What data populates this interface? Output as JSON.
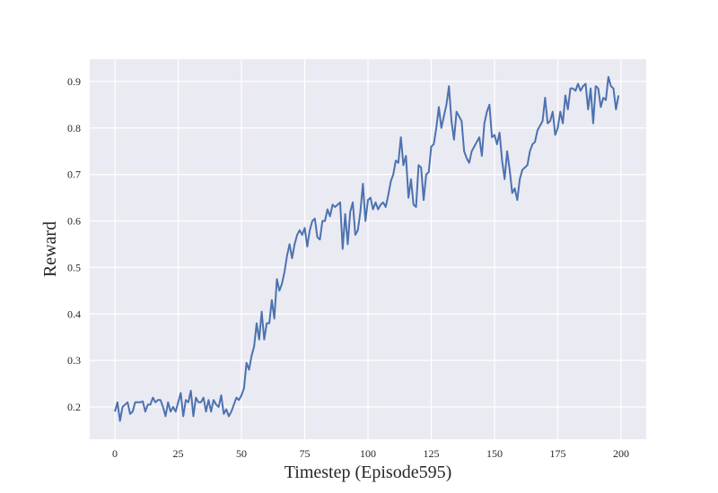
{
  "chart_data": {
    "type": "line",
    "xlabel": "Timestep (Episode595)",
    "ylabel": "Reward",
    "x": [
      0,
      1,
      2,
      3,
      4,
      5,
      6,
      7,
      8,
      9,
      10,
      11,
      12,
      13,
      14,
      15,
      16,
      17,
      18,
      19,
      20,
      21,
      22,
      23,
      24,
      25,
      26,
      27,
      28,
      29,
      30,
      31,
      32,
      33,
      34,
      35,
      36,
      37,
      38,
      39,
      40,
      41,
      42,
      43,
      44,
      45,
      46,
      47,
      48,
      49,
      50,
      51,
      52,
      53,
      54,
      55,
      56,
      57,
      58,
      59,
      60,
      61,
      62,
      63,
      64,
      65,
      66,
      67,
      68,
      69,
      70,
      71,
      72,
      73,
      74,
      75,
      76,
      77,
      78,
      79,
      80,
      81,
      82,
      83,
      84,
      85,
      86,
      87,
      88,
      89,
      90,
      91,
      92,
      93,
      94,
      95,
      96,
      97,
      98,
      99,
      100,
      101,
      102,
      103,
      104,
      105,
      106,
      107,
      108,
      109,
      110,
      111,
      112,
      113,
      114,
      115,
      116,
      117,
      118,
      119,
      120,
      121,
      122,
      123,
      124,
      125,
      126,
      127,
      128,
      129,
      130,
      131,
      132,
      133,
      134,
      135,
      136,
      137,
      138,
      139,
      140,
      141,
      142,
      143,
      144,
      145,
      146,
      147,
      148,
      149,
      150,
      151,
      152,
      153,
      154,
      155,
      156,
      157,
      158,
      159,
      160,
      161,
      162,
      163,
      164,
      165,
      166,
      167,
      168,
      169,
      170,
      171,
      172,
      173,
      174,
      175,
      176,
      177,
      178,
      179,
      180,
      181,
      182,
      183,
      184,
      185,
      186,
      187,
      188,
      189,
      190,
      191,
      192,
      193,
      194,
      195,
      196,
      197,
      198,
      199
    ],
    "series": [
      {
        "name": "Reward",
        "color": "#4c72b0",
        "values": [
          0.19,
          0.21,
          0.17,
          0.2,
          0.205,
          0.21,
          0.185,
          0.19,
          0.21,
          0.21,
          0.21,
          0.212,
          0.19,
          0.205,
          0.205,
          0.22,
          0.21,
          0.215,
          0.215,
          0.2,
          0.18,
          0.21,
          0.19,
          0.2,
          0.19,
          0.21,
          0.23,
          0.18,
          0.215,
          0.21,
          0.235,
          0.18,
          0.22,
          0.21,
          0.21,
          0.22,
          0.19,
          0.215,
          0.19,
          0.215,
          0.205,
          0.2,
          0.225,
          0.185,
          0.195,
          0.18,
          0.19,
          0.205,
          0.22,
          0.215,
          0.225,
          0.24,
          0.295,
          0.28,
          0.31,
          0.33,
          0.38,
          0.345,
          0.405,
          0.345,
          0.38,
          0.38,
          0.43,
          0.39,
          0.475,
          0.45,
          0.465,
          0.49,
          0.525,
          0.55,
          0.52,
          0.55,
          0.57,
          0.58,
          0.57,
          0.585,
          0.545,
          0.58,
          0.6,
          0.605,
          0.565,
          0.56,
          0.6,
          0.6,
          0.625,
          0.61,
          0.635,
          0.63,
          0.635,
          0.64,
          0.54,
          0.615,
          0.55,
          0.62,
          0.64,
          0.57,
          0.58,
          0.62,
          0.68,
          0.6,
          0.645,
          0.65,
          0.625,
          0.64,
          0.625,
          0.635,
          0.64,
          0.63,
          0.655,
          0.685,
          0.7,
          0.73,
          0.725,
          0.78,
          0.72,
          0.74,
          0.65,
          0.69,
          0.635,
          0.63,
          0.72,
          0.715,
          0.645,
          0.7,
          0.705,
          0.76,
          0.765,
          0.8,
          0.845,
          0.8,
          0.825,
          0.85,
          0.89,
          0.815,
          0.775,
          0.835,
          0.825,
          0.815,
          0.75,
          0.735,
          0.725,
          0.75,
          0.76,
          0.77,
          0.78,
          0.74,
          0.81,
          0.835,
          0.85,
          0.78,
          0.785,
          0.765,
          0.79,
          0.73,
          0.69,
          0.75,
          0.71,
          0.66,
          0.67,
          0.645,
          0.69,
          0.71,
          0.715,
          0.72,
          0.75,
          0.765,
          0.77,
          0.795,
          0.805,
          0.815,
          0.865,
          0.81,
          0.815,
          0.835,
          0.785,
          0.8,
          0.835,
          0.81,
          0.87,
          0.84,
          0.885,
          0.885,
          0.88,
          0.895,
          0.88,
          0.89,
          0.895,
          0.84,
          0.885,
          0.81,
          0.89,
          0.885,
          0.845,
          0.865,
          0.86,
          0.91,
          0.89,
          0.885,
          0.84,
          0.87
        ]
      }
    ],
    "xlim": [
      -9.95,
      209.95
    ],
    "ylim": [
      0.1306,
      0.948
    ],
    "xticks": [
      0,
      25,
      50,
      75,
      100,
      125,
      150,
      175,
      200
    ],
    "yticks": [
      0.2,
      0.3,
      0.4,
      0.5,
      0.6,
      0.7,
      0.8,
      0.9
    ],
    "grid": true,
    "background": "#eaeaf2"
  }
}
